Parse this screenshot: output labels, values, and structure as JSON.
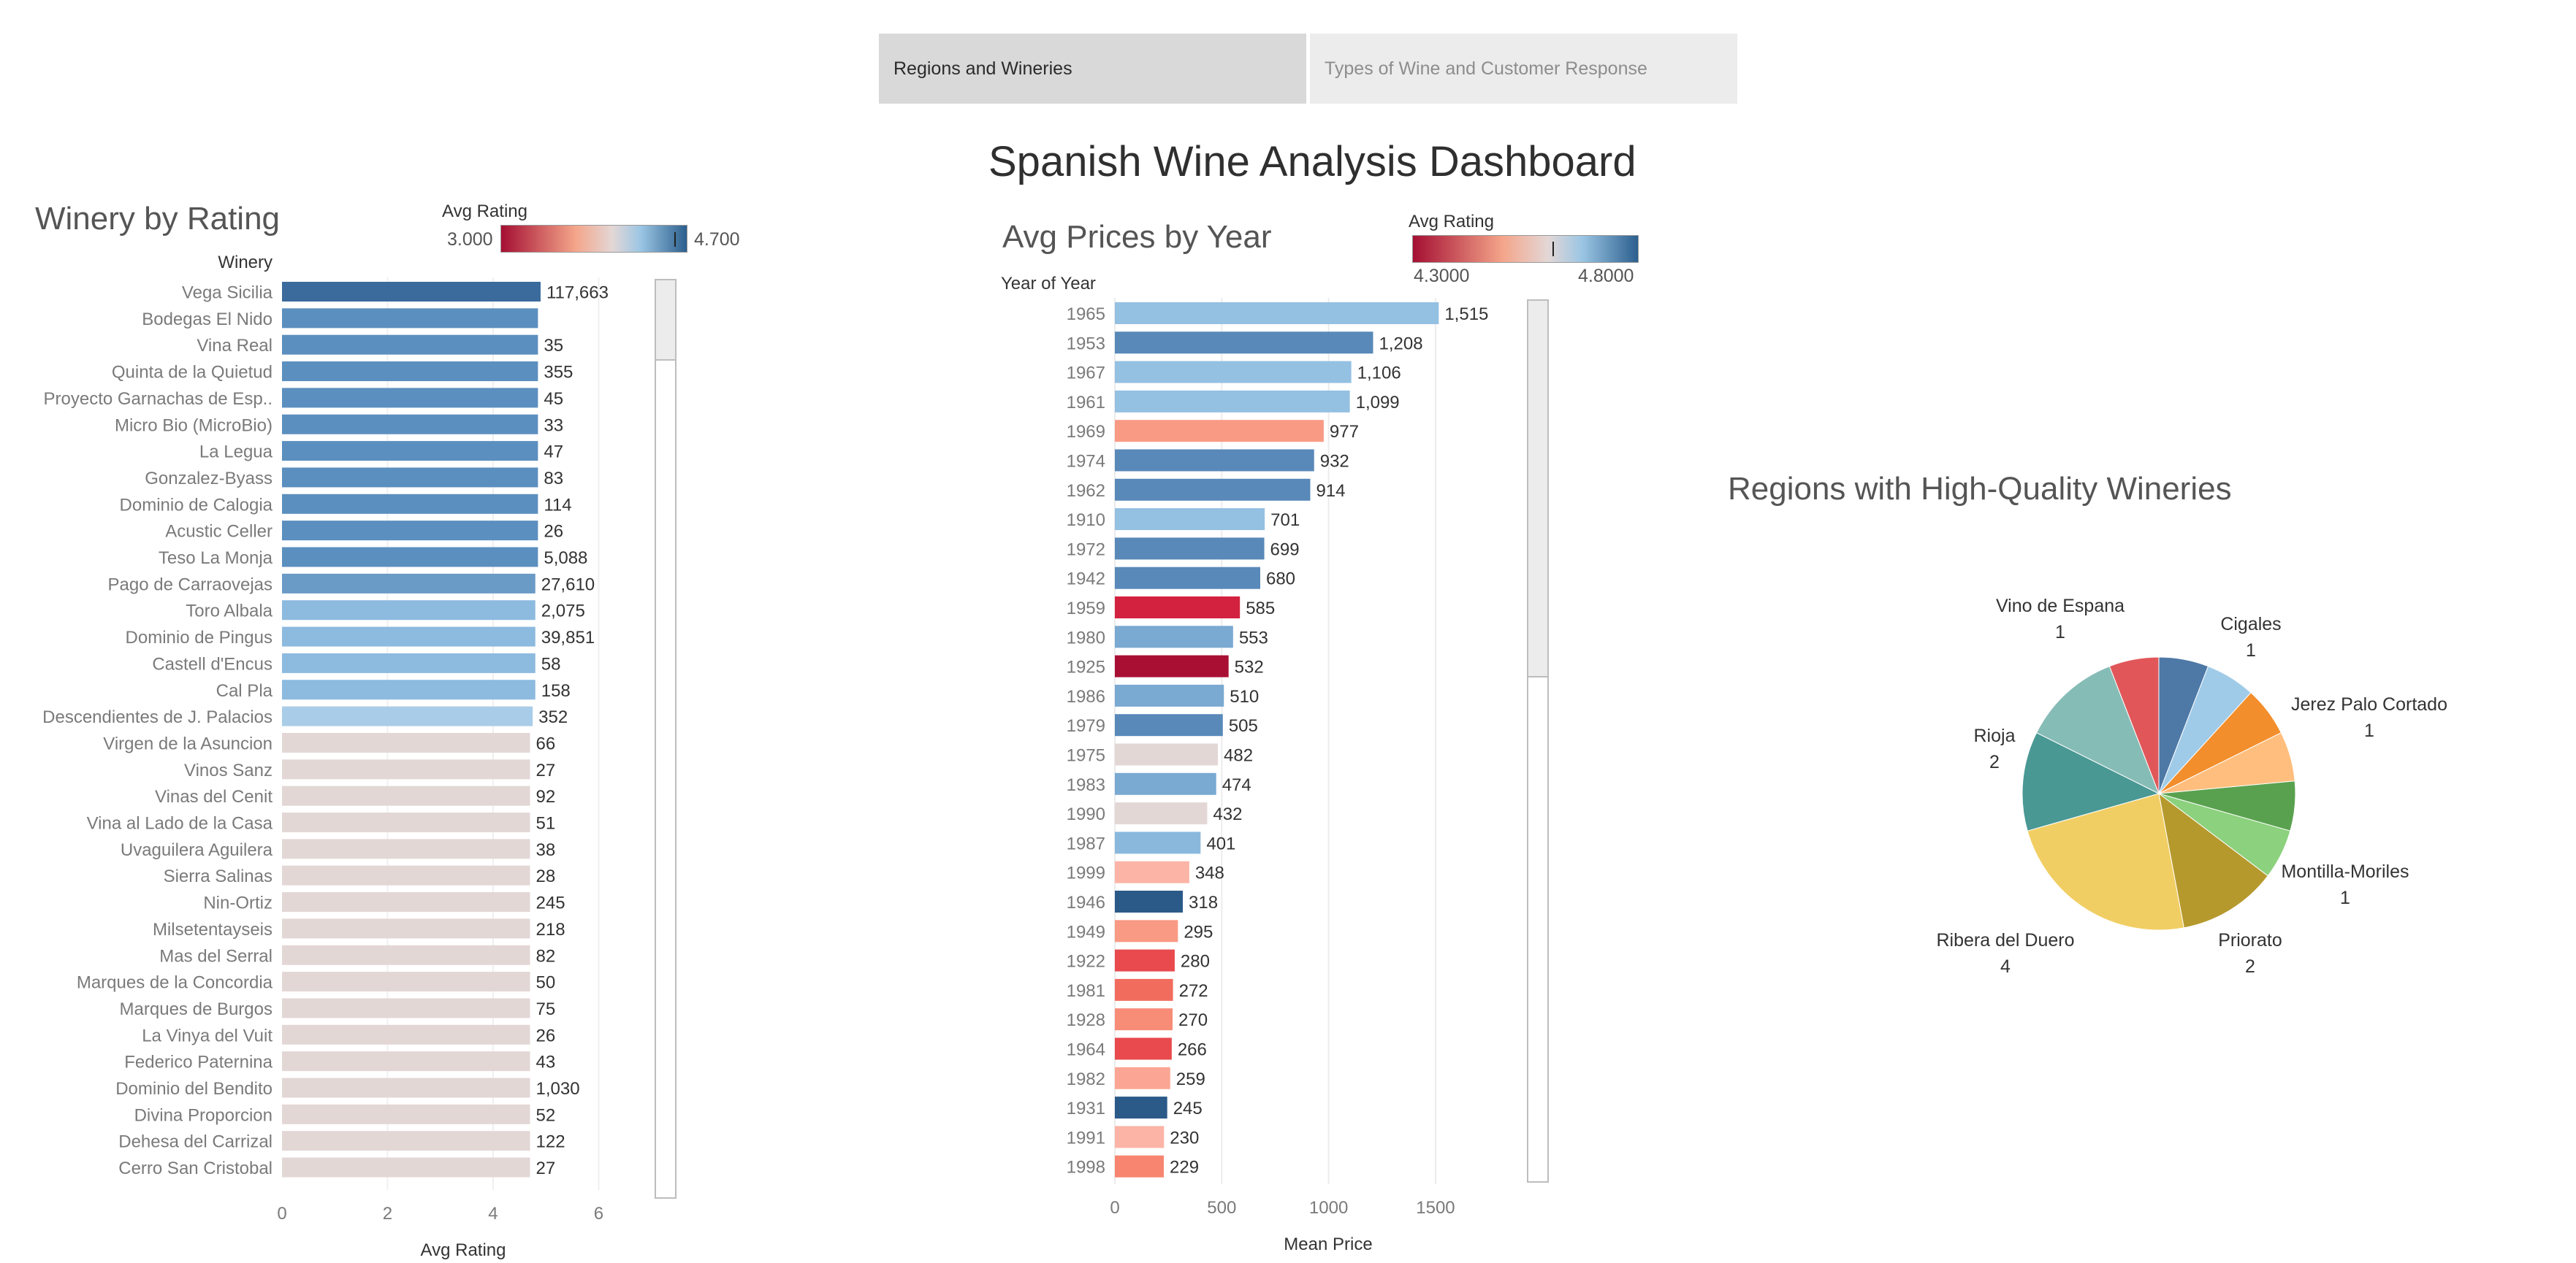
{
  "tabs": [
    {
      "label": "Regions and Wineries",
      "active": true
    },
    {
      "label": "Types of Wine and Customer Response",
      "active": false
    }
  ],
  "dashboard_title": "Spanish Wine Analysis Dashboard",
  "colors": {
    "legend_low": "#a50f33",
    "legend_mid": "#e3d7d6",
    "legend_high": "#2b5f8e"
  },
  "winery_panel": {
    "title": "Winery by Rating",
    "legend": {
      "title": "Avg Rating",
      "min": "3.000",
      "max": "4.700",
      "marker": 0.93
    }
  },
  "prices_panel": {
    "title": "Avg Prices by Year",
    "legend": {
      "title": "Avg Rating",
      "min": "4.3000",
      "max": "4.8000",
      "marker": 0.62
    }
  },
  "regions_panel": {
    "title": "Regions with High-Quality Wineries"
  },
  "chart_data": [
    {
      "type": "bar",
      "orientation": "horizontal",
      "title": "Winery by Rating",
      "row_header": "Winery",
      "xlabel": "Avg Rating",
      "xlim": [
        0,
        6.7
      ],
      "xticks": [
        0,
        2,
        4,
        6
      ],
      "color_by": "Avg Rating",
      "categories": [
        "Vega Sicilia",
        "Bodegas El Nido",
        "Vina Real",
        "Quinta de la Quietud",
        "Proyecto Garnachas de Esp..",
        "Micro Bio (MicroBio)",
        "La Legua",
        "Gonzalez-Byass",
        "Dominio de Calogia",
        "Acustic Celler",
        "Teso La Monja",
        "Pago de Carraovejas",
        "Toro Albala",
        "Dominio de Pingus",
        "Castell d'Encus",
        "Cal Pla",
        "Descendientes de J. Palacios",
        "Virgen de la Asuncion",
        "Vinos Sanz",
        "Vinas del Cenit",
        "Vina al Lado de la Casa",
        "Uvaguilera Aguilera",
        "Sierra Salinas",
        "Nin-Ortiz",
        "Milsetentayseis",
        "Mas del Serral",
        "Marques de la Concordia",
        "Marques de Burgos",
        "La Vinya del Vuit",
        "Federico Paternina",
        "Dominio del Bendito",
        "Divina Proporcion",
        "Dehesa del Carrizal",
        "Cerro San Cristobal"
      ],
      "values": [
        4.9,
        4.85,
        4.85,
        4.85,
        4.85,
        4.85,
        4.85,
        4.85,
        4.85,
        4.85,
        4.85,
        4.8,
        4.8,
        4.8,
        4.8,
        4.8,
        4.75,
        4.7,
        4.7,
        4.7,
        4.7,
        4.7,
        4.7,
        4.7,
        4.7,
        4.7,
        4.7,
        4.7,
        4.7,
        4.7,
        4.7,
        4.7,
        4.7,
        4.7
      ],
      "labels": [
        "117,663",
        "",
        "35",
        "355",
        "45",
        "33",
        "47",
        "83",
        "114",
        "26",
        "5,088",
        "27,610",
        "2,075",
        "39,851",
        "58",
        "158",
        "352",
        "66",
        "27",
        "92",
        "51",
        "38",
        "28",
        "245",
        "218",
        "82",
        "50",
        "75",
        "26",
        "43",
        "1,030",
        "52",
        "122",
        "27"
      ],
      "colors": [
        "#3a6b9c",
        "#5b8fbf",
        "#5b8fbf",
        "#5b8fbf",
        "#5b8fbf",
        "#5b8fbf",
        "#5b8fbf",
        "#5b8fbf",
        "#5b8fbf",
        "#5b8fbf",
        "#5b8fbf",
        "#6a9ac6",
        "#8dbadf",
        "#8dbadf",
        "#8dbadf",
        "#8dbadf",
        "#a9cde8",
        "#e3d7d6",
        "#e3d7d6",
        "#e3d7d6",
        "#e3d7d6",
        "#e3d7d6",
        "#e3d7d6",
        "#e3d7d6",
        "#e3d7d6",
        "#e3d7d6",
        "#e3d7d6",
        "#e3d7d6",
        "#e3d7d6",
        "#e3d7d6",
        "#e3d7d6",
        "#e3d7d6",
        "#e3d7d6",
        "#e3d7d6"
      ],
      "grid": false
    },
    {
      "type": "bar",
      "orientation": "horizontal",
      "title": "Avg Prices by Year",
      "row_header": "Year of Year",
      "xlabel": "Mean Price",
      "xlim": [
        0,
        1900
      ],
      "xticks": [
        0,
        500,
        1000,
        1500
      ],
      "color_by": "Avg Rating",
      "categories": [
        "1965",
        "1953",
        "1967",
        "1961",
        "1969",
        "1974",
        "1962",
        "1910",
        "1972",
        "1942",
        "1959",
        "1980",
        "1925",
        "1986",
        "1979",
        "1975",
        "1983",
        "1990",
        "1987",
        "1999",
        "1946",
        "1949",
        "1922",
        "1981",
        "1928",
        "1964",
        "1982",
        "1931",
        "1991",
        "1998"
      ],
      "values": [
        1515,
        1208,
        1106,
        1099,
        977,
        932,
        914,
        701,
        699,
        680,
        585,
        553,
        532,
        510,
        505,
        482,
        474,
        432,
        401,
        348,
        318,
        295,
        280,
        272,
        270,
        266,
        259,
        245,
        230,
        229
      ],
      "labels": [
        "1,515",
        "1,208",
        "1,106",
        "1,099",
        "977",
        "932",
        "914",
        "701",
        "699",
        "680",
        "585",
        "553",
        "532",
        "510",
        "505",
        "482",
        "474",
        "432",
        "401",
        "348",
        "318",
        "295",
        "280",
        "272",
        "270",
        "266",
        "259",
        "245",
        "230",
        "229"
      ],
      "colors": [
        "#94c0e2",
        "#5889b9",
        "#94c0e2",
        "#94c0e2",
        "#f99a84",
        "#5889b9",
        "#5889b9",
        "#94c0e2",
        "#5889b9",
        "#5889b9",
        "#d3223f",
        "#7aa9d2",
        "#a90f33",
        "#7aa9d2",
        "#5889b9",
        "#e3d7d6",
        "#7aa9d2",
        "#e3d7d6",
        "#8ab8dd",
        "#fbb4a6",
        "#2b5a89",
        "#f99a84",
        "#e84a4d",
        "#f26c5e",
        "#f78c77",
        "#e84a4d",
        "#fba694",
        "#2b5a89",
        "#fbb4a6",
        "#f7856f"
      ],
      "grid": true
    },
    {
      "type": "pie",
      "title": "Regions with High-Quality Wineries",
      "slices": [
        {
          "name": "Cigales",
          "value": 1,
          "color": "#4e79a7",
          "show_label": false
        },
        {
          "name": "Cigales",
          "value": 1,
          "color": "#a0cbe8",
          "show_label": true
        },
        {
          "name": "Jerez Palo Cortado",
          "value": 1,
          "color": "#f28e2b",
          "show_label": true
        },
        {
          "name": "Jerez Palo Cortado",
          "value": 1,
          "color": "#ffbe7d",
          "show_label": false
        },
        {
          "name": "Montilla-Moriles",
          "value": 1,
          "color": "#59a14f",
          "show_label": false
        },
        {
          "name": "Montilla-Moriles",
          "value": 1,
          "color": "#8cd17d",
          "show_label": true
        },
        {
          "name": "Priorato",
          "value": 2,
          "color": "#b6992d",
          "show_label": true
        },
        {
          "name": "Ribera del Duero",
          "value": 4,
          "color": "#f1ce63",
          "show_label": true
        },
        {
          "name": "Rioja",
          "value": 2,
          "color": "#499894",
          "show_label": true
        },
        {
          "name": "Vino de Espana",
          "value": 2,
          "color": "#86bcb6",
          "show_label": false
        },
        {
          "name": "Vino de Espana",
          "value": 1,
          "color": "#e15759",
          "show_label": true
        }
      ],
      "labels": [
        {
          "name": "Vino de Espana",
          "value": "1"
        },
        {
          "name": "Cigales",
          "value": "1"
        },
        {
          "name": "Jerez Palo Cortado",
          "value": "1"
        },
        {
          "name": "Rioja",
          "value": "2"
        },
        {
          "name": "Montilla-Moriles",
          "value": "1"
        },
        {
          "name": "Ribera del Duero",
          "value": "4"
        },
        {
          "name": "Priorato",
          "value": "2"
        }
      ]
    }
  ]
}
